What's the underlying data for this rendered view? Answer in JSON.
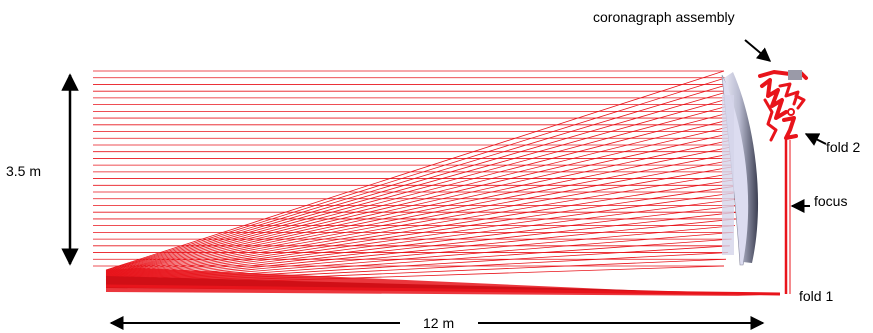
{
  "labels": {
    "height": "3.5 m",
    "width": "12 m",
    "coronagraph": "coronagraph assembly",
    "fold2": "fold 2",
    "focus": "focus",
    "fold1": "fold 1"
  },
  "colors": {
    "ray": "#e8141b",
    "mirror_light": "#dcdcf0",
    "mirror_dark": "#45485a",
    "arrow": "#000000"
  }
}
